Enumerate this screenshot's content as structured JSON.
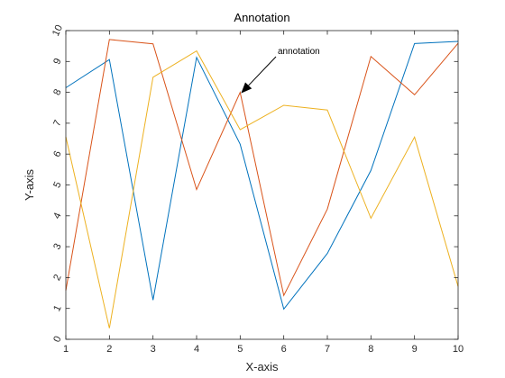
{
  "chart_data": {
    "type": "line",
    "title": "Annotation",
    "xlabel": "X-axis",
    "ylabel": "Y-axis",
    "xlim": [
      1,
      10
    ],
    "ylim": [
      0,
      10
    ],
    "x": [
      1,
      2,
      3,
      4,
      5,
      6,
      7,
      8,
      9,
      10
    ],
    "xticks": [
      "1",
      "2",
      "3",
      "4",
      "5",
      "6",
      "7",
      "8",
      "9",
      "10"
    ],
    "yticks": [
      "0",
      "1",
      "2",
      "3",
      "4",
      "5",
      "6",
      "7",
      "8",
      "9",
      "10"
    ],
    "grid": false,
    "series": [
      {
        "color": "#0072BD",
        "values": [
          8.15,
          9.06,
          1.27,
          9.13,
          6.32,
          0.98,
          2.78,
          5.47,
          9.58,
          9.65
        ]
      },
      {
        "color": "#D95319",
        "values": [
          1.58,
          9.71,
          9.57,
          4.85,
          8.0,
          1.42,
          4.22,
          9.16,
          7.92,
          9.59
        ]
      },
      {
        "color": "#EDB120",
        "values": [
          6.56,
          0.36,
          8.49,
          9.34,
          6.79,
          7.58,
          7.43,
          3.92,
          6.55,
          1.71
        ]
      }
    ],
    "annotation": {
      "text": "annotation",
      "points_to": {
        "x": 5,
        "y": 8.0
      }
    }
  }
}
